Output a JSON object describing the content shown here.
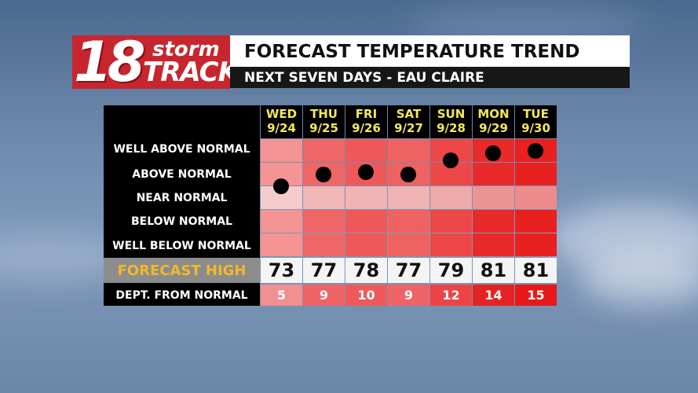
{
  "header": {
    "logo_number": "18",
    "logo_word_top": "storm",
    "logo_word_bottom": "TRACK",
    "title": "FORECAST TEMPERATURE TREND",
    "subtitle": "NEXT SEVEN DAYS - EAU CLAIRE"
  },
  "chart_data": {
    "type": "table",
    "title": "FORECAST TEMPERATURE TREND",
    "subtitle": "NEXT SEVEN DAYS - EAU CLAIRE",
    "row_labels": [
      "WELL ABOVE NORMAL",
      "ABOVE NORMAL",
      "NEAR NORMAL",
      "BELOW NORMAL",
      "WELL BELOW NORMAL"
    ],
    "forecast_high_label": "FORECAST HIGH",
    "dept_label": "DEPT. FROM NORMAL",
    "days": [
      {
        "day": "WED",
        "date": "9/24",
        "high": 73,
        "dept": 5,
        "category_level": 1.5
      },
      {
        "day": "THU",
        "date": "9/25",
        "high": 77,
        "dept": 9,
        "category_level": 1.0
      },
      {
        "day": "FRI",
        "date": "9/26",
        "high": 78,
        "dept": 10,
        "category_level": 0.9
      },
      {
        "day": "SAT",
        "date": "9/27",
        "high": 77,
        "dept": 9,
        "category_level": 1.0
      },
      {
        "day": "SUN",
        "date": "9/28",
        "high": 79,
        "dept": 12,
        "category_level": 0.4
      },
      {
        "day": "MON",
        "date": "9/29",
        "high": 81,
        "dept": 14,
        "category_level": 0.1
      },
      {
        "day": "TUE",
        "date": "9/30",
        "high": 81,
        "dept": 15,
        "category_level": 0.0
      }
    ],
    "colors": {
      "col_base": [
        "#f49494",
        "#ef6666",
        "#ee5858",
        "#ef6262",
        "#ec4848",
        "#e92a2a",
        "#e92020"
      ],
      "near_normal": [
        "#f5cccc",
        "#f1b6b6",
        "#f1b4b4",
        "#f1b4b4",
        "#efaaaa",
        "#ec9494",
        "#ec8c8c"
      ],
      "dept": [
        "#f09090",
        "#ee6464",
        "#ee5a5a",
        "#ee6464",
        "#ec4444",
        "#e62323",
        "#e81818"
      ]
    }
  }
}
